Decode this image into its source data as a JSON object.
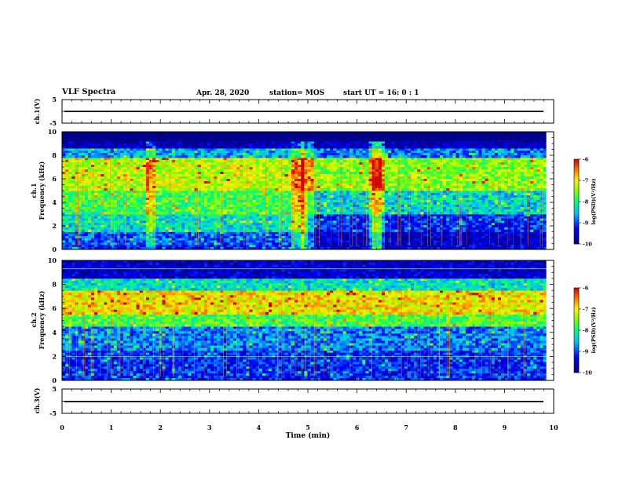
{
  "header": {
    "title": "VLF Spectra",
    "date": "Apr. 28, 2020",
    "station": "station= MOS",
    "start_time": "start UT =  16: 0  : 1"
  },
  "chart_data": [
    {
      "type": "line",
      "name": "ch.1 waveform",
      "ylabel": "ch.1(V)",
      "yticks": [
        5,
        -5
      ],
      "ylim": [
        -5,
        5
      ],
      "xlim": [
        0,
        10
      ],
      "baseline": 0,
      "line_color": "#000000"
    },
    {
      "type": "heatmap",
      "name": "ch.1 spectrogram",
      "ylabel": "ch.1\nFrequency (kHz)",
      "yticks": [
        0,
        2,
        4,
        6,
        8,
        10
      ],
      "ylim": [
        0,
        10
      ],
      "xlim": [
        0,
        9.85
      ],
      "colorbar": {
        "label": "log(PSD)(V²/Hz)",
        "ticks": [
          -6,
          -7,
          -8,
          -9,
          -10
        ],
        "range": [
          -10,
          -6
        ]
      },
      "bands_log_psd": [
        {
          "freq_khz": [
            0,
            0.4
          ],
          "before_5min": -9.3,
          "after_5min": -9.5
        },
        {
          "freq_khz": [
            0.4,
            1.5
          ],
          "before_5min": -9.0,
          "after_5min": -9.6
        },
        {
          "freq_khz": [
            1.5,
            3.0
          ],
          "before_5min": -8.3,
          "after_5min": -9.2
        },
        {
          "freq_khz": [
            3.0,
            5.0
          ],
          "before_5min": -7.8,
          "after_5min": -8.4
        },
        {
          "freq_khz": [
            5.0,
            7.8
          ],
          "before_5min": -7.3,
          "after_5min": -7.5
        },
        {
          "freq_khz": [
            7.8,
            8.6
          ],
          "before_5min": -8.6,
          "after_5min": -8.8
        },
        {
          "freq_khz": [
            8.6,
            9.2
          ],
          "before_5min": -9.7,
          "after_5min": -9.7
        },
        {
          "freq_khz": [
            9.2,
            10
          ],
          "before_5min": -10.5,
          "after_5min": -10.5
        }
      ],
      "intense_bursts_min": [
        1.8,
        4.8,
        5.0,
        6.35,
        6.45
      ]
    },
    {
      "type": "heatmap",
      "name": "ch.2 spectrogram",
      "ylabel": "ch.2\nFrequency (kHz)",
      "yticks": [
        0,
        2,
        4,
        6,
        8,
        10
      ],
      "ylim": [
        0,
        10
      ],
      "xlim": [
        0,
        9.85
      ],
      "colorbar": {
        "label": "log(PSD)(V²/Hz)",
        "ticks": [
          -6,
          -7,
          -8,
          -9,
          -10
        ],
        "range": [
          -10,
          -6
        ]
      },
      "bands_log_psd": [
        {
          "freq_khz": [
            0,
            2.5
          ],
          "level": -9.2
        },
        {
          "freq_khz": [
            2.5,
            4.5
          ],
          "level": -8.8
        },
        {
          "freq_khz": [
            4.5,
            5.5
          ],
          "level": -7.8
        },
        {
          "freq_khz": [
            5.5,
            7.5
          ],
          "level": -7.0
        },
        {
          "freq_khz": [
            7.5,
            8.5
          ],
          "level": -8.3
        },
        {
          "freq_khz": [
            8.5,
            10
          ],
          "level": -9.6
        }
      ],
      "tone_lines_khz": [
        2.0,
        9.3
      ]
    },
    {
      "type": "line",
      "name": "ch.3 waveform",
      "ylabel": "ch.3(V)",
      "yticks": [
        5,
        -5
      ],
      "ylim": [
        -5,
        5
      ],
      "xlim": [
        0,
        10
      ],
      "baseline": 0,
      "line_color": "#000000"
    }
  ],
  "xaxis": {
    "label": "Time (min)",
    "ticks": [
      0,
      1,
      2,
      3,
      4,
      5,
      6,
      7,
      8,
      9,
      10
    ],
    "range": [
      0,
      10
    ]
  }
}
